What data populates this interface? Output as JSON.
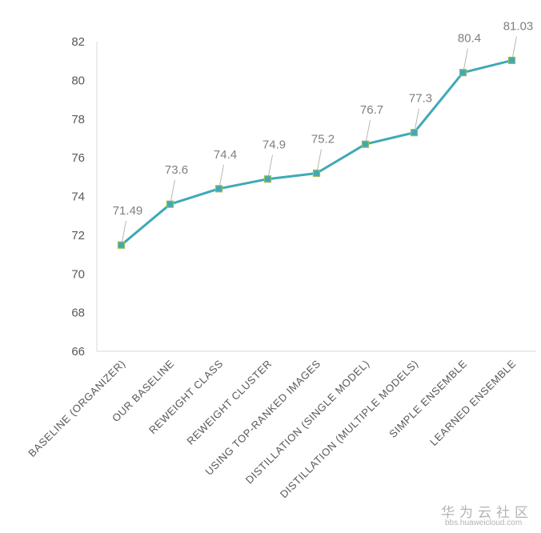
{
  "chart_data": {
    "type": "line",
    "title": "",
    "xlabel": "",
    "ylabel": "",
    "categories": [
      "BASELINE (ORGANIZER)",
      "OUR BASELINE",
      "REWEIGHT CLASS",
      "REWEIGHT CLUSTER",
      "USING TOP-RANKED IMAGES",
      "DISTILLATION (SINGLE MODEL)",
      "DISTILLATION (MULTIPLE MODELS)",
      "SIMPLE ENSEMBLE",
      "LEARNED ENSEMBLE"
    ],
    "values": [
      71.49,
      73.6,
      74.4,
      74.9,
      75.2,
      76.7,
      77.3,
      80.4,
      81.03
    ],
    "data_labels": [
      "71.49",
      "73.6",
      "74.4",
      "74.9",
      "75.2",
      "76.7",
      "77.3",
      "80.4",
      "81.03"
    ],
    "ylim": [
      66,
      82
    ],
    "yticks": [
      "66",
      "68",
      "70",
      "72",
      "74",
      "76",
      "78",
      "80",
      "82"
    ],
    "grid": false,
    "legend": "none",
    "colors": {
      "line": "#3fa9b8",
      "marker": "#3fa9b8",
      "marker_edge": "#9bbb59",
      "axis": "#d9d9d9"
    }
  },
  "watermark": {
    "title": "华为云社区",
    "url": "bbs.huaweicloud.com"
  }
}
